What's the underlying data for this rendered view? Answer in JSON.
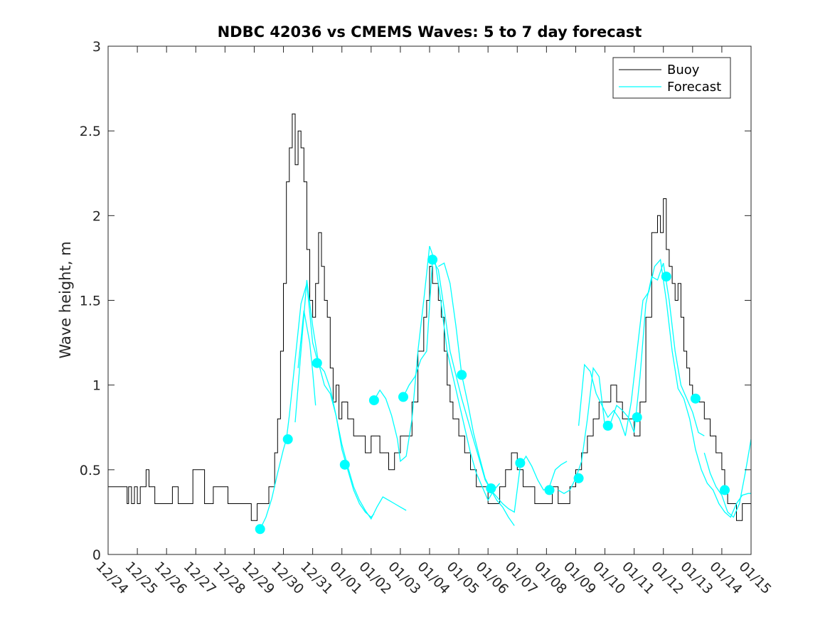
{
  "chart_data": {
    "type": "line",
    "title": "NDBC 42036 vs CMEMS Waves: 5 to 7 day forecast",
    "xlabel": "",
    "ylabel": "Wave height, m",
    "xlim": [
      0,
      22
    ],
    "ylim": [
      0,
      3
    ],
    "x_tick_labels": [
      "12/24",
      "12/25",
      "12/26",
      "12/27",
      "12/28",
      "12/29",
      "12/30",
      "12/31",
      "01/01",
      "01/02",
      "01/03",
      "01/04",
      "01/05",
      "01/06",
      "01/07",
      "01/08",
      "01/09",
      "01/10",
      "01/11",
      "01/12",
      "01/13",
      "01/14",
      "01/15"
    ],
    "y_ticks": [
      0,
      0.5,
      1,
      1.5,
      2,
      2.5,
      3
    ],
    "y_tick_labels": [
      "0",
      "0.5",
      "1",
      "1.5",
      "2",
      "2.5",
      "3"
    ],
    "grid": false,
    "legend_position": "top-right",
    "colors": {
      "buoy": "#000000",
      "forecast": "#00ffff",
      "axis": "#262626"
    },
    "series": [
      {
        "name": "Buoy",
        "type": "step",
        "x": [
          0,
          0.3,
          0.6,
          0.65,
          0.7,
          0.8,
          0.9,
          1.0,
          1.1,
          1.2,
          1.3,
          1.4,
          1.6,
          1.9,
          2.2,
          2.4,
          2.7,
          2.9,
          3.3,
          3.6,
          4.1,
          4.4,
          4.7,
          4.9,
          5.1,
          5.3,
          5.5,
          5.7,
          5.8,
          5.9,
          6.0,
          6.1,
          6.2,
          6.3,
          6.4,
          6.5,
          6.6,
          6.7,
          6.8,
          6.9,
          7.0,
          7.1,
          7.2,
          7.3,
          7.4,
          7.5,
          7.6,
          7.7,
          7.8,
          7.9,
          8.0,
          8.2,
          8.4,
          8.6,
          8.8,
          9.0,
          9.3,
          9.6,
          9.8,
          10.0,
          10.2,
          10.4,
          10.6,
          10.8,
          10.9,
          11.0,
          11.1,
          11.2,
          11.3,
          11.4,
          11.5,
          11.6,
          11.7,
          11.8,
          11.9,
          12.0,
          12.2,
          12.4,
          12.6,
          12.8,
          13.0,
          13.2,
          13.4,
          13.6,
          13.8,
          14.0,
          14.2,
          14.4,
          14.6,
          14.8,
          15.0,
          15.2,
          15.4,
          15.6,
          15.8,
          16.0,
          16.2,
          16.4,
          16.6,
          16.8,
          17.0,
          17.2,
          17.4,
          17.6,
          17.8,
          18.0,
          18.2,
          18.4,
          18.6,
          18.8,
          18.9,
          19.0,
          19.1,
          19.2,
          19.3,
          19.4,
          19.5,
          19.6,
          19.7,
          19.8,
          19.9,
          20.0,
          20.2,
          20.4,
          20.6,
          20.8,
          21.0,
          21.1,
          21.2,
          21.3,
          21.5,
          21.7,
          22.0
        ],
        "y": [
          0.4,
          0.4,
          0.4,
          0.3,
          0.4,
          0.3,
          0.4,
          0.3,
          0.4,
          0.4,
          0.5,
          0.4,
          0.3,
          0.3,
          0.4,
          0.3,
          0.3,
          0.5,
          0.3,
          0.4,
          0.3,
          0.3,
          0.3,
          0.2,
          0.3,
          0.3,
          0.4,
          0.6,
          0.8,
          1.2,
          1.6,
          2.2,
          2.4,
          2.6,
          2.3,
          2.5,
          2.4,
          2.2,
          1.8,
          1.5,
          1.4,
          1.6,
          1.9,
          1.7,
          1.5,
          1.4,
          1.1,
          0.9,
          1.0,
          0.8,
          0.9,
          0.8,
          0.7,
          0.7,
          0.6,
          0.7,
          0.6,
          0.5,
          0.6,
          0.7,
          0.7,
          0.9,
          1.2,
          1.4,
          1.5,
          1.7,
          1.6,
          1.6,
          1.5,
          1.4,
          1.2,
          1.0,
          0.9,
          0.8,
          0.8,
          0.7,
          0.6,
          0.5,
          0.4,
          0.4,
          0.3,
          0.3,
          0.4,
          0.5,
          0.6,
          0.5,
          0.4,
          0.4,
          0.3,
          0.3,
          0.3,
          0.4,
          0.3,
          0.3,
          0.4,
          0.5,
          0.6,
          0.7,
          0.8,
          0.9,
          0.9,
          1.0,
          0.9,
          0.8,
          0.8,
          0.7,
          0.9,
          1.4,
          1.9,
          2.0,
          1.9,
          2.1,
          1.8,
          1.7,
          1.6,
          1.5,
          1.6,
          1.4,
          1.2,
          1.1,
          1.0,
          0.9,
          0.9,
          0.8,
          0.7,
          0.6,
          0.5,
          0.4,
          0.3,
          0.3,
          0.2,
          0.3,
          0.3
        ]
      },
      {
        "name": "Forecast",
        "segments": [
          {
            "x": [
              5.2,
              5.4,
              5.6,
              5.8,
              6.0,
              6.1,
              6.2,
              6.4,
              6.6,
              6.8,
              7.0,
              7.2,
              7.4,
              7.6,
              7.8,
              8.0,
              8.2,
              8.4,
              8.6,
              8.8,
              9.0,
              9.1
            ],
            "y": [
              0.15,
              0.22,
              0.33,
              0.48,
              0.62,
              0.68,
              0.82,
              1.15,
              1.48,
              1.6,
              1.25,
              1.12,
              1.08,
              0.98,
              0.82,
              0.62,
              0.5,
              0.38,
              0.3,
              0.25,
              0.22,
              0.24
            ]
          },
          {
            "x": [
              6.4,
              6.6,
              6.8,
              7.0,
              7.2,
              7.4,
              7.6,
              7.8,
              8.0,
              8.2,
              8.4,
              8.6,
              8.8,
              9.0,
              9.2,
              9.4,
              9.6,
              9.8,
              10.0,
              10.2
            ],
            "y": [
              0.78,
              1.2,
              1.62,
              1.35,
              1.13,
              1.0,
              0.95,
              0.82,
              0.65,
              0.52,
              0.4,
              0.32,
              0.26,
              0.21,
              0.28,
              0.34,
              0.32,
              0.3,
              0.28,
              0.26
            ]
          },
          {
            "x": [
              6.5,
              6.7,
              6.9,
              7.0,
              7.1
            ],
            "y": [
              1.1,
              1.44,
              1.25,
              1.08,
              0.88
            ]
          },
          {
            "x": [
              9.1,
              9.3,
              9.5,
              9.7,
              9.9,
              10.0,
              10.2,
              10.4,
              10.6,
              10.8,
              11.0,
              11.2,
              11.4,
              11.6,
              11.8,
              12.0,
              12.2,
              12.4,
              12.6,
              12.8,
              13.0,
              13.2,
              13.4
            ],
            "y": [
              0.91,
              0.97,
              0.92,
              0.82,
              0.68,
              0.55,
              0.58,
              0.8,
              1.2,
              1.5,
              1.82,
              1.72,
              1.48,
              1.2,
              1.05,
              0.9,
              0.75,
              0.6,
              0.48,
              0.4,
              0.32,
              0.38,
              0.42
            ]
          },
          {
            "x": [
              10.1,
              10.3,
              10.5,
              10.7,
              10.9,
              11.1,
              11.3,
              11.5,
              11.7,
              11.9,
              12.1,
              12.3,
              12.5,
              12.7,
              12.9,
              13.1,
              13.3,
              13.5,
              13.7,
              13.9,
              14.1,
              14.3,
              14.5,
              14.7,
              14.9,
              15.1,
              15.3,
              15.5,
              15.7
            ],
            "y": [
              0.93,
              1.0,
              1.05,
              1.15,
              1.2,
              1.74,
              1.68,
              1.45,
              1.2,
              1.06,
              0.92,
              0.8,
              0.68,
              0.56,
              0.44,
              0.38,
              0.34,
              0.3,
              0.27,
              0.25,
              0.52,
              0.58,
              0.52,
              0.44,
              0.38,
              0.4,
              0.5,
              0.53,
              0.55
            ]
          },
          {
            "x": [
              11.3,
              11.5,
              11.7,
              11.9,
              12.1,
              12.3,
              12.5,
              12.7,
              12.9,
              13.1,
              13.3,
              13.5,
              13.7,
              13.9
            ],
            "y": [
              1.7,
              1.72,
              1.6,
              1.35,
              1.06,
              0.9,
              0.72,
              0.58,
              0.45,
              0.38,
              0.32,
              0.28,
              0.22,
              0.17
            ]
          },
          {
            "x": [
              15.4,
              15.6,
              15.8,
              16.0,
              16.2,
              16.4,
              16.6,
              16.8,
              17.0,
              17.2,
              17.4,
              17.6,
              17.8,
              18.0,
              18.2,
              18.4,
              18.6,
              18.8,
              19.0,
              19.2,
              19.4,
              19.6,
              19.8,
              20.0,
              20.2,
              20.4
            ],
            "y": [
              0.38,
              0.36,
              0.38,
              0.45,
              0.55,
              0.8,
              1.1,
              1.05,
              0.76,
              0.78,
              0.88,
              0.85,
              0.81,
              0.72,
              1.05,
              1.48,
              1.64,
              1.62,
              1.72,
              1.5,
              1.2,
              1.0,
              0.92,
              0.84,
              0.72,
              0.7
            ]
          },
          {
            "x": [
              16.1,
              16.3,
              16.5,
              16.7,
              16.9,
              17.1,
              17.3,
              17.5,
              17.7,
              17.9,
              18.1,
              18.3,
              18.5,
              18.7,
              18.9,
              19.1,
              19.3,
              19.5,
              19.7,
              19.9,
              20.1,
              20.3,
              20.5,
              20.7,
              20.9,
              21.1,
              21.3,
              21.5,
              21.7,
              21.9,
              22.0
            ],
            "y": [
              0.76,
              1.12,
              1.08,
              0.95,
              0.88,
              0.81,
              0.85,
              0.8,
              0.7,
              0.9,
              1.2,
              1.5,
              1.55,
              1.7,
              1.74,
              1.5,
              1.2,
              0.98,
              0.92,
              0.8,
              0.62,
              0.5,
              0.42,
              0.38,
              0.3,
              0.25,
              0.22,
              0.3,
              0.35,
              0.36,
              0.36
            ]
          },
          {
            "x": [
              20.4,
              20.6,
              20.8,
              21.0,
              21.2,
              21.4,
              21.6,
              21.8,
              22.0
            ],
            "y": [
              0.6,
              0.48,
              0.4,
              0.35,
              0.25,
              0.22,
              0.3,
              0.48,
              0.68
            ]
          }
        ],
        "markers": {
          "x": [
            5.2,
            6.15,
            7.15,
            8.1,
            9.1,
            10.1,
            11.1,
            12.1,
            13.1,
            14.1,
            15.1,
            16.1,
            17.1,
            18.1,
            19.1,
            20.1,
            21.1
          ],
          "y": [
            0.15,
            0.68,
            1.13,
            0.53,
            0.91,
            0.93,
            1.74,
            1.06,
            0.39,
            0.54,
            0.38,
            0.45,
            0.76,
            0.81,
            1.64,
            0.92,
            0.38
          ]
        }
      }
    ]
  }
}
